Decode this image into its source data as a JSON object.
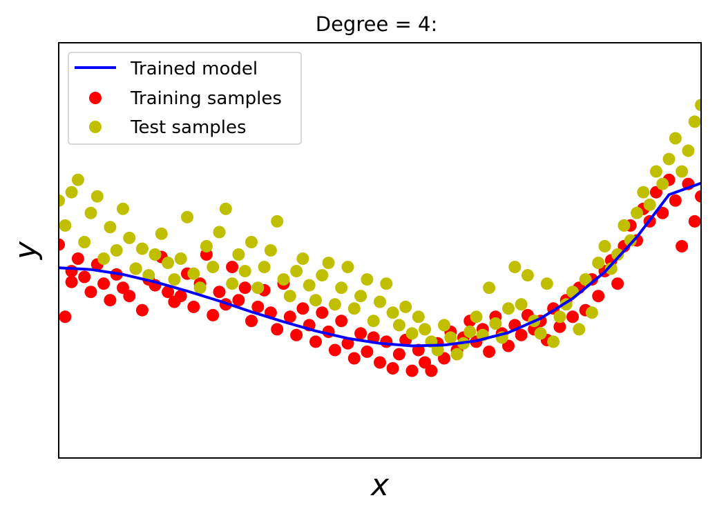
{
  "chart_data": {
    "type": "scatter",
    "title": "Degree = 4:",
    "xlabel": "x",
    "ylabel": "y",
    "xlim": [
      0,
      1
    ],
    "ylim": [
      -2.0,
      3.0
    ],
    "show_ticks": false,
    "grid": false,
    "legend_position": "upper-left",
    "series": [
      {
        "name": "Trained model",
        "kind": "line",
        "color": "#0000ff",
        "x": [
          0.0,
          0.05,
          0.1,
          0.15,
          0.2,
          0.25,
          0.3,
          0.35,
          0.4,
          0.45,
          0.5,
          0.55,
          0.6,
          0.65,
          0.7,
          0.75,
          0.8,
          0.85,
          0.9,
          0.95,
          1.0
        ],
        "y": [
          0.29,
          0.27,
          0.21,
          0.12,
          0.01,
          -0.11,
          -0.24,
          -0.36,
          -0.47,
          -0.56,
          -0.62,
          -0.65,
          -0.64,
          -0.59,
          -0.49,
          -0.32,
          -0.08,
          0.24,
          0.66,
          1.17,
          1.31
        ]
      },
      {
        "name": "Training samples",
        "kind": "scatter",
        "color": "#ff0000",
        "x": [
          0.0,
          0.01,
          0.02,
          0.02,
          0.03,
          0.04,
          0.05,
          0.06,
          0.07,
          0.08,
          0.09,
          0.1,
          0.11,
          0.12,
          0.13,
          0.14,
          0.15,
          0.16,
          0.17,
          0.18,
          0.19,
          0.2,
          0.21,
          0.22,
          0.23,
          0.24,
          0.25,
          0.26,
          0.27,
          0.28,
          0.29,
          0.3,
          0.31,
          0.32,
          0.33,
          0.34,
          0.35,
          0.36,
          0.37,
          0.38,
          0.39,
          0.4,
          0.41,
          0.42,
          0.43,
          0.44,
          0.45,
          0.46,
          0.47,
          0.48,
          0.49,
          0.5,
          0.51,
          0.52,
          0.53,
          0.54,
          0.55,
          0.56,
          0.57,
          0.58,
          0.59,
          0.6,
          0.61,
          0.62,
          0.63,
          0.64,
          0.65,
          0.66,
          0.67,
          0.68,
          0.69,
          0.7,
          0.71,
          0.72,
          0.73,
          0.74,
          0.75,
          0.76,
          0.77,
          0.78,
          0.79,
          0.8,
          0.81,
          0.82,
          0.83,
          0.84,
          0.85,
          0.86,
          0.87,
          0.88,
          0.89,
          0.9,
          0.91,
          0.92,
          0.93,
          0.94,
          0.95,
          0.96,
          0.97,
          0.98,
          0.99,
          1.0
        ],
        "y": [
          0.57,
          -0.3,
          0.25,
          0.12,
          0.4,
          0.18,
          0.0,
          0.33,
          0.1,
          -0.1,
          0.21,
          0.05,
          -0.05,
          0.28,
          -0.22,
          0.15,
          0.08,
          0.42,
          0.0,
          -0.12,
          -0.05,
          0.22,
          -0.18,
          0.1,
          0.45,
          -0.28,
          0.0,
          -0.15,
          0.3,
          -0.1,
          0.05,
          -0.35,
          -0.18,
          0.02,
          -0.25,
          -0.45,
          0.1,
          -0.3,
          -0.52,
          -0.2,
          -0.4,
          -0.6,
          -0.25,
          -0.48,
          -0.7,
          -0.35,
          -0.62,
          -0.8,
          -0.5,
          -0.72,
          -0.55,
          -0.85,
          -0.6,
          -0.92,
          -0.75,
          -0.58,
          -0.95,
          -0.7,
          -0.85,
          -0.95,
          -0.62,
          -0.8,
          -0.48,
          -0.7,
          -0.55,
          -0.35,
          -0.6,
          -0.45,
          -0.72,
          -0.3,
          -0.5,
          -0.65,
          -0.4,
          -0.52,
          -0.28,
          -0.45,
          -0.35,
          -0.58,
          -0.2,
          -0.42,
          -0.1,
          -0.3,
          0.05,
          -0.22,
          0.15,
          -0.05,
          0.25,
          0.38,
          0.1,
          0.55,
          0.8,
          0.62,
          1.0,
          0.85,
          1.2,
          0.95,
          1.35,
          1.1,
          0.55,
          1.3,
          0.85,
          1.15
        ]
      },
      {
        "name": "Test samples",
        "kind": "scatter",
        "color": "#bfbf00",
        "x": [
          0.0,
          0.01,
          0.02,
          0.03,
          0.04,
          0.05,
          0.06,
          0.07,
          0.08,
          0.09,
          0.1,
          0.11,
          0.12,
          0.13,
          0.14,
          0.15,
          0.16,
          0.17,
          0.18,
          0.19,
          0.2,
          0.21,
          0.22,
          0.23,
          0.24,
          0.25,
          0.26,
          0.27,
          0.28,
          0.29,
          0.3,
          0.31,
          0.32,
          0.33,
          0.34,
          0.35,
          0.36,
          0.37,
          0.38,
          0.39,
          0.4,
          0.41,
          0.42,
          0.43,
          0.44,
          0.45,
          0.46,
          0.47,
          0.48,
          0.49,
          0.5,
          0.51,
          0.52,
          0.53,
          0.54,
          0.55,
          0.56,
          0.57,
          0.58,
          0.59,
          0.6,
          0.61,
          0.62,
          0.63,
          0.64,
          0.65,
          0.66,
          0.67,
          0.68,
          0.69,
          0.7,
          0.71,
          0.72,
          0.73,
          0.74,
          0.75,
          0.76,
          0.77,
          0.78,
          0.79,
          0.8,
          0.81,
          0.82,
          0.83,
          0.84,
          0.85,
          0.86,
          0.87,
          0.88,
          0.89,
          0.9,
          0.91,
          0.92,
          0.93,
          0.94,
          0.95,
          0.96,
          0.97,
          0.98,
          0.99,
          1.0
        ],
        "y": [
          1.1,
          0.8,
          1.2,
          1.35,
          0.6,
          0.95,
          1.15,
          0.4,
          0.78,
          0.5,
          1.0,
          0.65,
          0.28,
          0.52,
          0.2,
          0.45,
          0.7,
          0.35,
          0.15,
          0.4,
          0.9,
          0.22,
          0.05,
          0.55,
          0.3,
          0.72,
          1.0,
          0.1,
          0.45,
          0.25,
          0.6,
          0.05,
          0.3,
          0.5,
          0.85,
          0.15,
          -0.05,
          0.25,
          0.4,
          0.08,
          -0.1,
          0.2,
          0.35,
          -0.15,
          0.05,
          0.3,
          -0.2,
          -0.05,
          0.15,
          -0.35,
          -0.12,
          0.1,
          -0.25,
          -0.4,
          -0.18,
          -0.5,
          -0.3,
          -0.45,
          -0.6,
          -0.7,
          -0.4,
          -0.55,
          -0.75,
          -0.62,
          -0.48,
          -0.3,
          -0.52,
          0.05,
          -0.38,
          -0.55,
          -0.2,
          0.3,
          -0.15,
          0.2,
          -0.35,
          -0.5,
          0.1,
          -0.6,
          -0.3,
          -0.15,
          0.0,
          -0.45,
          0.15,
          -0.25,
          0.35,
          0.55,
          0.28,
          0.45,
          0.8,
          0.62,
          0.95,
          1.2,
          1.05,
          1.45,
          1.3,
          1.6,
          1.85,
          1.45,
          1.7,
          2.05,
          2.25
        ]
      }
    ]
  },
  "legend": {
    "items": [
      {
        "label": "Trained model",
        "color": "#0000ff"
      },
      {
        "label": "Training samples",
        "color": "#ff0000"
      },
      {
        "label": "Test samples",
        "color": "#bfbf00"
      }
    ]
  }
}
